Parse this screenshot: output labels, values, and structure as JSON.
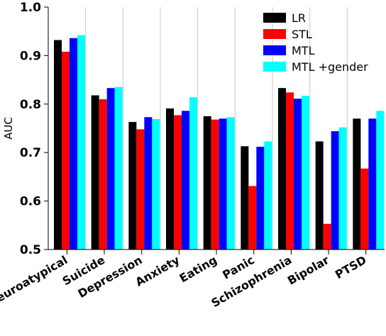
{
  "chart_data": {
    "type": "bar",
    "title": "",
    "xlabel": "",
    "ylabel": "AUC",
    "ylim": [
      0.5,
      1.0
    ],
    "yticks": [
      "0.5",
      "0.6",
      "0.7",
      "0.8",
      "0.9",
      "1.0"
    ],
    "grid": "vertical separators between categories",
    "legend_position": "top-right",
    "categories": [
      "Neuroatypical",
      "Suicide",
      "Depression",
      "Anxiety",
      "Eating",
      "Panic",
      "Schizophrenia",
      "Bipolar",
      "PTSD"
    ],
    "series": [
      {
        "name": "LR",
        "color": "#000000",
        "values": [
          0.932,
          0.818,
          0.763,
          0.791,
          0.775,
          0.713,
          0.833,
          0.723,
          0.77
        ]
      },
      {
        "name": "STL",
        "color": "#ff0000",
        "values": [
          0.908,
          0.81,
          0.748,
          0.777,
          0.768,
          0.631,
          0.824,
          0.553,
          0.667
        ]
      },
      {
        "name": "MTL",
        "color": "#0000ff",
        "values": [
          0.936,
          0.833,
          0.773,
          0.786,
          0.77,
          0.712,
          0.811,
          0.744,
          0.77
        ]
      },
      {
        "name": "MTL +gender",
        "color": "#00ffff",
        "values": [
          0.942,
          0.835,
          0.769,
          0.814,
          0.773,
          0.723,
          0.817,
          0.752,
          0.786
        ]
      }
    ]
  }
}
